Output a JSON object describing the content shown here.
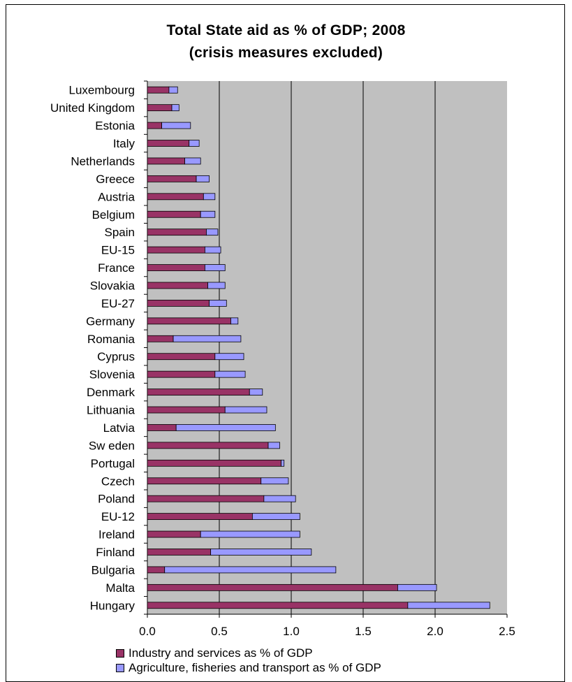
{
  "chart_data": {
    "type": "bar",
    "orientation": "horizontal",
    "stacked": true,
    "title": "Total State aid as % of GDP; 2008",
    "subtitle": "(crisis measures excluded)",
    "categories": [
      "Luxembourg",
      "United Kingdom",
      "Estonia",
      "Italy",
      "Netherlands",
      "Greece",
      "Austria",
      "Belgium",
      "Spain",
      "EU-15",
      "France",
      "Slovakia",
      "EU-27",
      "Germany",
      "Romania",
      "Cyprus",
      "Slovenia",
      "Denmark",
      "Lithuania",
      "Latvia",
      "Sw eden",
      "Portugal",
      "Czech",
      "Poland",
      "EU-12",
      "Ireland",
      "Finland",
      "Bulgaria",
      "Malta",
      "Hungary"
    ],
    "series": [
      {
        "name": "Industry and services as % of GDP",
        "color": "#993366",
        "values": [
          0.15,
          0.17,
          0.1,
          0.29,
          0.26,
          0.34,
          0.39,
          0.37,
          0.41,
          0.4,
          0.4,
          0.42,
          0.43,
          0.58,
          0.18,
          0.47,
          0.47,
          0.71,
          0.54,
          0.2,
          0.84,
          0.93,
          0.79,
          0.81,
          0.73,
          0.37,
          0.44,
          0.12,
          1.74,
          1.81
        ]
      },
      {
        "name": "Agriculture, fisheries and transport as % of GDP",
        "color": "#9999ff",
        "values": [
          0.06,
          0.05,
          0.2,
          0.07,
          0.11,
          0.09,
          0.08,
          0.1,
          0.08,
          0.11,
          0.14,
          0.12,
          0.12,
          0.05,
          0.47,
          0.2,
          0.21,
          0.09,
          0.29,
          0.69,
          0.08,
          0.02,
          0.19,
          0.22,
          0.33,
          0.69,
          0.7,
          1.19,
          0.27,
          0.57
        ]
      }
    ],
    "xlim": [
      0,
      2.5
    ],
    "xticks": [
      "0.0",
      "0.5",
      "1.0",
      "1.5",
      "2.0",
      "2.5"
    ],
    "grid": true,
    "plot_background": "#c0c0c0",
    "legend_position": "bottom"
  }
}
